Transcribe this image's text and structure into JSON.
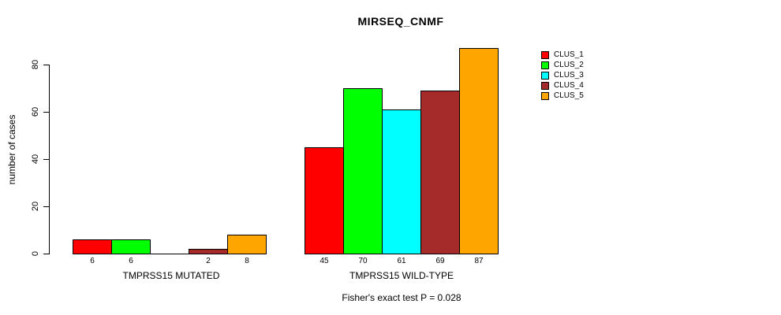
{
  "chart_data": {
    "type": "bar",
    "title": "MIRSEQ_CNMF",
    "ylabel": "number of cases",
    "xlabel": "",
    "ylim": [
      0,
      87
    ],
    "yticks": [
      0,
      20,
      40,
      60,
      80
    ],
    "grid": false,
    "legend_position": "right",
    "categories": [
      "TMPRSS15 MUTATED",
      "TMPRSS15 WILD-TYPE"
    ],
    "series": [
      {
        "name": "CLUS_1",
        "color": "#FF0000",
        "values": [
          6,
          45
        ]
      },
      {
        "name": "CLUS_2",
        "color": "#00FF00",
        "values": [
          6,
          70
        ]
      },
      {
        "name": "CLUS_3",
        "color": "#00FFFF",
        "values": [
          0,
          61
        ]
      },
      {
        "name": "CLUS_4",
        "color": "#A52A2A",
        "values": [
          2,
          69
        ]
      },
      {
        "name": "CLUS_5",
        "color": "#FFA500",
        "values": [
          8,
          87
        ]
      }
    ],
    "bar_value_labels": [
      [
        "6",
        "6",
        "",
        "2",
        "8"
      ],
      [
        "45",
        "70",
        "61",
        "69",
        "87"
      ]
    ],
    "annotation": "Fisher's exact test P = 0.028"
  }
}
